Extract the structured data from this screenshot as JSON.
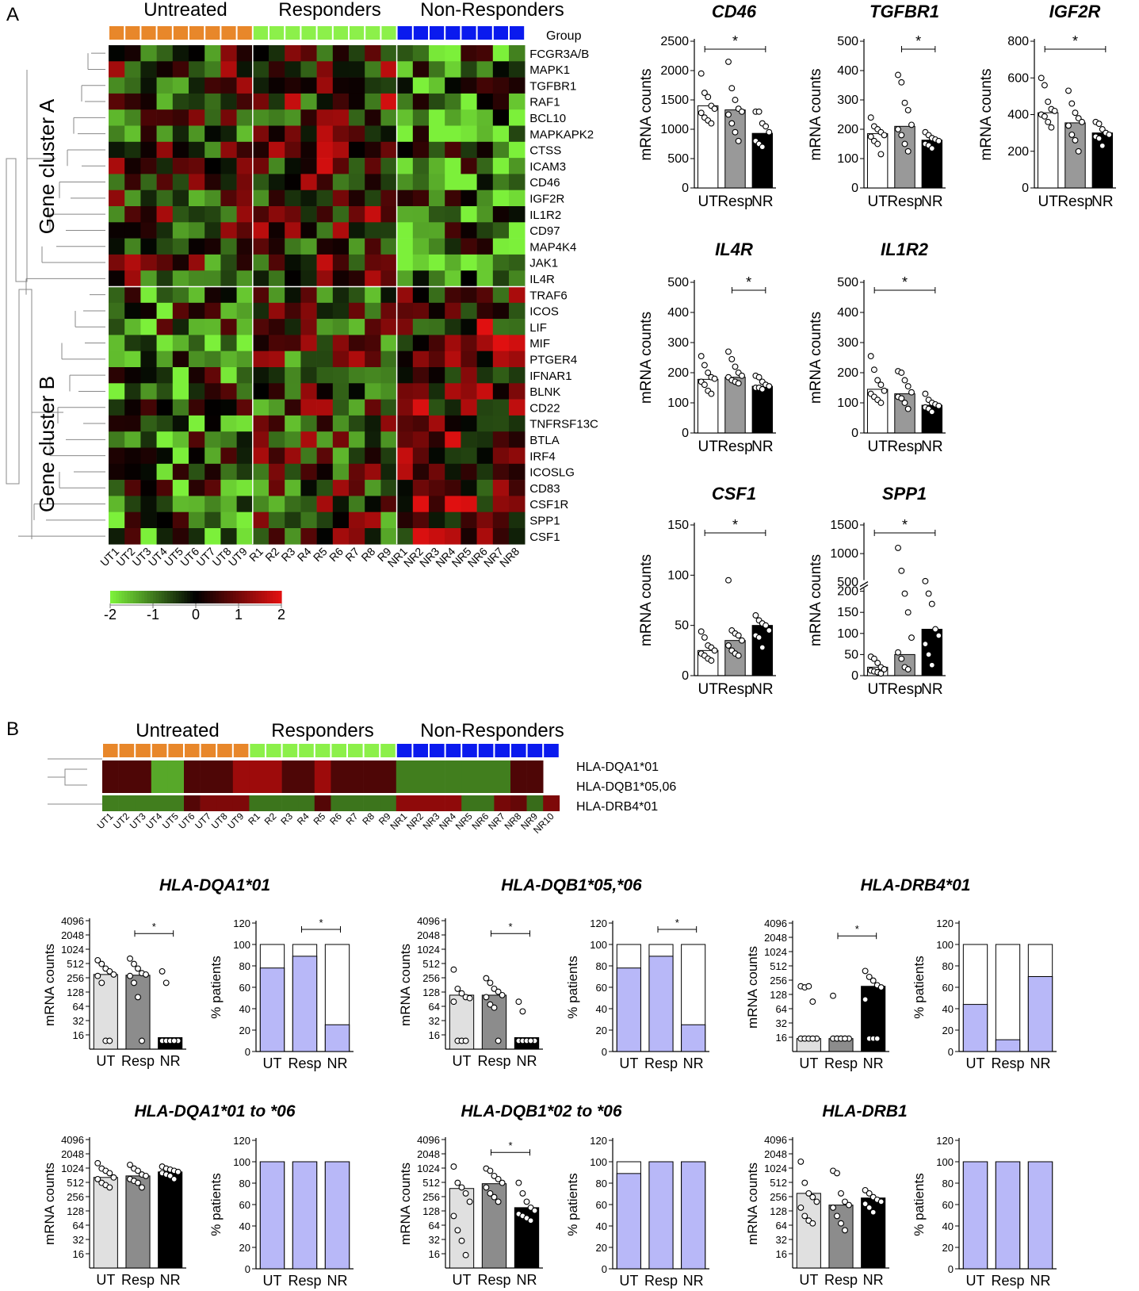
{
  "panels": {
    "a": "A",
    "b": "B"
  },
  "colors": {
    "ut_group": "#e8872a",
    "resp_group": "#8cf04a",
    "nr_group": "#0a1aee",
    "heat_low": "#7cf03a",
    "heat_mid": "#000000",
    "heat_high": "#e01010",
    "bar_ut": "#ffffff",
    "bar_resp": "#999999",
    "bar_nr": "#000000",
    "bar_ut_hla": "#e0e0e0",
    "bar_resp_hla": "#8c8c8c",
    "pct_fill": "#b8b8f8"
  },
  "heatmap": {
    "group_labels": [
      "Untreated",
      "Responders",
      "Non-Responders"
    ],
    "group_row_label": "Group",
    "cluster_labels": [
      "Gene cluster A",
      "Gene cluster B"
    ],
    "genes": [
      "FCGR3A/B",
      "MAPK1",
      "TGFBR1",
      "RAF1",
      "BCL10",
      "MAPKAPK2",
      "CTSS",
      "ICAM3",
      "CD46",
      "IGF2R",
      "IL1R2",
      "CD97",
      "MAP4K4",
      "JAK1",
      "IL4R",
      "TRAF6",
      "ICOS",
      "LIF",
      "MIF",
      "PTGER4",
      "IFNAR1",
      "BLNK",
      "CD22",
      "TNFRSF13C",
      "BTLA",
      "IRF4",
      "ICOSLG",
      "CD83",
      "CSF1R",
      "SPP1",
      "CSF1"
    ],
    "samples": [
      "UT1",
      "UT2",
      "UT3",
      "UT4",
      "UT5",
      "UT6",
      "UT7",
      "UT8",
      "UT9",
      "R1",
      "R2",
      "R3",
      "R4",
      "R5",
      "R6",
      "R7",
      "R8",
      "R9",
      "NR1",
      "NR2",
      "NR3",
      "NR4",
      "NR5",
      "NR6",
      "NR7",
      "NR8"
    ],
    "scale_ticks": [
      "-2",
      "-1",
      "0",
      "1",
      "2"
    ],
    "scale_range": [
      -2,
      2
    ]
  },
  "hla_heatmap": {
    "group_labels": [
      "Untreated",
      "Responders",
      "Non-Responders"
    ],
    "rows": [
      "HLA-DQA1*01",
      "HLA-DQB1*05,06",
      "HLA-DRB4*01"
    ],
    "samples": [
      "UT1",
      "UT2",
      "UT3",
      "UT4",
      "UT5",
      "UT6",
      "UT7",
      "UT8",
      "UT9",
      "R1",
      "R2",
      "R3",
      "R4",
      "R5",
      "R6",
      "R7",
      "R8",
      "R9",
      "NR1",
      "NR2",
      "NR3",
      "NR4",
      "NR5",
      "NR6",
      "NR7",
      "NR8",
      "NR9",
      "NR10"
    ]
  },
  "chart_data": [
    {
      "type": "bar",
      "title": "CD46",
      "ylabel": "mRNA counts",
      "categories": [
        "UT",
        "Resp",
        "NR"
      ],
      "values": [
        1400,
        1330,
        930
      ],
      "ylim": [
        0,
        2500
      ],
      "yticks": [
        "0",
        "500",
        "1000",
        "1500",
        "2000",
        "2500"
      ],
      "points": [
        [
          1950,
          1620,
          1550,
          1400,
          1350,
          1280,
          1200,
          1150,
          1100
        ],
        [
          2150,
          1700,
          1500,
          1350,
          1300,
          1250,
          1100,
          950,
          800
        ],
        [
          1300,
          1300,
          1100,
          1050,
          950,
          800,
          750,
          700
        ]
      ],
      "significance": [
        {
          "from": "UT",
          "to": "NR",
          "label": "*"
        }
      ]
    },
    {
      "type": "bar",
      "title": "TGFBR1",
      "ylabel": "mRNA counts",
      "categories": [
        "UT",
        "Resp",
        "NR"
      ],
      "values": [
        185,
        210,
        163
      ],
      "ylim": [
        0,
        500
      ],
      "yticks": [
        "0",
        "100",
        "200",
        "300",
        "400",
        "500"
      ],
      "points": [
        [
          240,
          210,
          200,
          190,
          180,
          175,
          160,
          150,
          115
        ],
        [
          385,
          360,
          290,
          265,
          215,
          200,
          180,
          150,
          125
        ],
        [
          190,
          180,
          170,
          165,
          160,
          150,
          145,
          135
        ]
      ],
      "significance": [
        {
          "from": "Resp",
          "to": "NR",
          "label": "*"
        }
      ]
    },
    {
      "type": "bar",
      "title": "IGF2R",
      "ylabel": "mRNA counts",
      "categories": [
        "UT",
        "Resp",
        "NR"
      ],
      "values": [
        410,
        355,
        300
      ],
      "ylim": [
        0,
        800
      ],
      "yticks": [
        "0",
        "200",
        "400",
        "600",
        "800"
      ],
      "points": [
        [
          600,
          560,
          470,
          430,
          420,
          400,
          390,
          360,
          330
        ],
        [
          530,
          460,
          410,
          380,
          360,
          340,
          290,
          260,
          200
        ],
        [
          360,
          350,
          320,
          300,
          290,
          280,
          270,
          230
        ]
      ],
      "significance": [
        {
          "from": "UT",
          "to": "NR",
          "label": "*"
        }
      ]
    },
    {
      "type": "bar",
      "title": "IL4R",
      "ylabel": "mRNA counts",
      "categories": [
        "UT",
        "Resp",
        "NR"
      ],
      "values": [
        178,
        185,
        155
      ],
      "ylim": [
        0,
        500
      ],
      "yticks": [
        "0",
        "100",
        "200",
        "300",
        "400",
        "500"
      ],
      "points": [
        [
          255,
          225,
          200,
          185,
          180,
          170,
          160,
          140,
          130
        ],
        [
          270,
          245,
          220,
          200,
          190,
          185,
          175,
          170,
          165
        ],
        [
          190,
          185,
          170,
          160,
          155,
          150,
          150,
          145
        ]
      ],
      "significance": [
        {
          "from": "Resp",
          "to": "NR",
          "label": "*"
        }
      ]
    },
    {
      "type": "bar",
      "title": "IL1R2",
      "ylabel": "mRNA counts",
      "categories": [
        "UT",
        "Resp",
        "NR"
      ],
      "values": [
        145,
        130,
        92
      ],
      "ylim": [
        0,
        500
      ],
      "yticks": [
        "0",
        "100",
        "200",
        "300",
        "400",
        "500"
      ],
      "points": [
        [
          255,
          210,
          175,
          160,
          140,
          130,
          120,
          110,
          100
        ],
        [
          205,
          200,
          175,
          155,
          135,
          120,
          115,
          100,
          80
        ],
        [
          130,
          110,
          100,
          95,
          90,
          85,
          80,
          70
        ]
      ],
      "significance": [
        {
          "from": "UT",
          "to": "NR",
          "label": "*"
        }
      ]
    },
    {
      "type": "bar",
      "title": "CSF1",
      "ylabel": "mRNA counts",
      "categories": [
        "UT",
        "Resp",
        "NR"
      ],
      "values": [
        25,
        35,
        50
      ],
      "ylim": [
        0,
        150
      ],
      "yticks": [
        "0",
        "50",
        "100",
        "150"
      ],
      "points": [
        [
          44,
          38,
          30,
          28,
          25,
          22,
          20,
          17,
          15
        ],
        [
          95,
          45,
          42,
          40,
          35,
          30,
          25,
          22,
          20
        ],
        [
          60,
          55,
          52,
          50,
          45,
          40,
          38,
          28
        ]
      ],
      "significance": [
        {
          "from": "UT",
          "to": "NR",
          "label": "*"
        }
      ]
    },
    {
      "type": "bar",
      "title": "SPP1",
      "ylabel": "mRNA counts",
      "categories": [
        "UT",
        "Resp",
        "NR"
      ],
      "values": [
        20,
        50,
        110
      ],
      "ylim": [
        0,
        1500
      ],
      "yticks": [
        "0",
        "50",
        "100",
        "150",
        "200",
        "500",
        "1000",
        "1500"
      ],
      "axis_break": [
        200,
        500
      ],
      "points": [
        [
          45,
          40,
          30,
          20,
          15,
          12,
          10,
          8,
          5
        ],
        [
          1100,
          700,
          300,
          150,
          90,
          55,
          40,
          20,
          15
        ],
        [
          520,
          300,
          170,
          110,
          95,
          75,
          50,
          25
        ]
      ],
      "significance": [
        {
          "from": "UT",
          "to": "NR",
          "label": "*"
        }
      ]
    },
    {
      "type": "bar",
      "title": "HLA-DQA1*01",
      "ylabel": "mRNA counts",
      "categories": [
        "UT",
        "Resp",
        "NR"
      ],
      "values": [
        300,
        290,
        14
      ],
      "yscale": "log2",
      "yticks": [
        "16",
        "32",
        "64",
        "128",
        "256",
        "512",
        "1024",
        "2048",
        "4096"
      ],
      "points": [
        [
          600,
          500,
          400,
          350,
          300,
          280,
          200,
          12,
          12
        ],
        [
          650,
          500,
          400,
          320,
          300,
          280,
          200,
          100,
          12
        ],
        [
          350,
          200,
          12,
          12,
          12,
          12,
          12,
          12,
          12
        ]
      ],
      "significance": [
        {
          "from": "Resp",
          "to": "NR",
          "label": "*"
        }
      ]
    },
    {
      "type": "bar",
      "title": "HLA-DQA1*01",
      "ylabel": "% patients",
      "categories": [
        "UT",
        "Resp",
        "NR"
      ],
      "values": [
        78,
        89,
        25
      ],
      "ylim": [
        0,
        120
      ],
      "yticks": [
        "0",
        "20",
        "40",
        "60",
        "80",
        "100",
        "120"
      ],
      "significance": [
        {
          "from": "Resp",
          "to": "NR",
          "label": "*"
        }
      ]
    },
    {
      "type": "bar",
      "title": "HLA-DQB1*05,*06",
      "ylabel": "mRNA counts",
      "categories": [
        "UT",
        "Resp",
        "NR"
      ],
      "values": [
        110,
        110,
        14
      ],
      "yscale": "log2",
      "yticks": [
        "16",
        "32",
        "64",
        "128",
        "256",
        "512",
        "1024",
        "2048",
        "4096"
      ],
      "points": [
        [
          380,
          150,
          120,
          100,
          95,
          80,
          12,
          12,
          12
        ],
        [
          250,
          200,
          150,
          130,
          110,
          100,
          70,
          60,
          12
        ],
        [
          80,
          50,
          12,
          12,
          12,
          12,
          12,
          12,
          12
        ]
      ],
      "significance": [
        {
          "from": "Resp",
          "to": "NR",
          "label": "*"
        }
      ]
    },
    {
      "type": "bar",
      "title": "HLA-DQB1*05,*06",
      "ylabel": "% patients",
      "categories": [
        "UT",
        "Resp",
        "NR"
      ],
      "values": [
        78,
        89,
        25
      ],
      "ylim": [
        0,
        120
      ],
      "yticks": [
        "0",
        "20",
        "40",
        "60",
        "80",
        "100",
        "120"
      ],
      "significance": [
        {
          "from": "Resp",
          "to": "NR",
          "label": "*"
        }
      ]
    },
    {
      "type": "bar",
      "title": "HLA-DRB4*01",
      "ylabel": "mRNA counts",
      "categories": [
        "UT",
        "Resp",
        "NR"
      ],
      "values": [
        15,
        15,
        190
      ],
      "yscale": "log2",
      "yticks": [
        "16",
        "32",
        "64",
        "128",
        "256",
        "512",
        "1024",
        "2048",
        "4096"
      ],
      "points": [
        [
          190,
          180,
          190,
          90,
          15,
          15,
          15,
          15,
          15
        ],
        [
          120,
          15,
          15,
          15,
          15,
          15,
          15,
          15,
          15
        ],
        [
          400,
          300,
          250,
          200,
          180,
          100,
          15,
          15,
          15
        ]
      ],
      "significance": [
        {
          "from": "Resp",
          "to": "NR",
          "label": "*"
        }
      ]
    },
    {
      "type": "bar",
      "title": "HLA-DRB4*01",
      "ylabel": "% patients",
      "categories": [
        "UT",
        "Resp",
        "NR"
      ],
      "values": [
        44,
        11,
        70
      ],
      "ylim": [
        0,
        120
      ],
      "yticks": [
        "0",
        "20",
        "40",
        "60",
        "80",
        "100",
        "120"
      ]
    },
    {
      "type": "bar",
      "title": "HLA-DQA1*01 to *06",
      "ylabel": "mRNA counts",
      "categories": [
        "UT",
        "Resp",
        "NR"
      ],
      "values": [
        650,
        700,
        850
      ],
      "yscale": "log2",
      "yticks": [
        "16",
        "32",
        "64",
        "128",
        "256",
        "512",
        "1024",
        "2048",
        "4096"
      ],
      "points": [
        [
          1300,
          1000,
          900,
          800,
          650,
          600,
          500,
          450,
          400
        ],
        [
          1200,
          1000,
          900,
          750,
          700,
          600,
          550,
          500,
          400
        ],
        [
          1100,
          1000,
          950,
          900,
          850,
          800,
          750,
          700,
          600
        ]
      ]
    },
    {
      "type": "bar",
      "title": "HLA-DQA1*01 to *06",
      "ylabel": "% patients",
      "categories": [
        "UT",
        "Resp",
        "NR"
      ],
      "values": [
        100,
        100,
        100
      ],
      "ylim": [
        0,
        120
      ],
      "yticks": [
        "0",
        "20",
        "40",
        "60",
        "80",
        "100",
        "120"
      ]
    },
    {
      "type": "bar",
      "title": "HLA-DQB1*02 to *06",
      "ylabel": "mRNA counts",
      "categories": [
        "UT",
        "Resp",
        "NR"
      ],
      "values": [
        380,
        480,
        150
      ],
      "yscale": "log2",
      "yticks": [
        "16",
        "32",
        "64",
        "128",
        "256",
        "512",
        "1024",
        "2048",
        "4096"
      ],
      "points": [
        [
          1100,
          500,
          400,
          300,
          200,
          100,
          50,
          30,
          15
        ],
        [
          1000,
          900,
          700,
          600,
          500,
          400,
          300,
          250,
          200
        ],
        [
          500,
          300,
          200,
          150,
          130,
          110,
          100,
          90,
          80
        ]
      ],
      "significance": [
        {
          "from": "Resp",
          "to": "NR",
          "label": "*"
        }
      ]
    },
    {
      "type": "bar",
      "title": "HLA-DQB1*02 to *06",
      "ylabel": "% patients",
      "categories": [
        "UT",
        "Resp",
        "NR"
      ],
      "values": [
        89,
        100,
        100
      ],
      "ylim": [
        0,
        120
      ],
      "yticks": [
        "0",
        "20",
        "40",
        "60",
        "80",
        "100",
        "120"
      ]
    },
    {
      "type": "bar",
      "title": "HLA-DRB1",
      "ylabel": "mRNA counts",
      "categories": [
        "UT",
        "Resp",
        "NR"
      ],
      "values": [
        300,
        170,
        240
      ],
      "yscale": "log2",
      "yticks": [
        "16",
        "32",
        "64",
        "128",
        "256",
        "512",
        "1024",
        "2048",
        "4096"
      ],
      "points": [
        [
          1400,
          500,
          300,
          250,
          200,
          150,
          100,
          80,
          70
        ],
        [
          900,
          800,
          300,
          200,
          170,
          150,
          100,
          70,
          50
        ],
        [
          350,
          300,
          250,
          220,
          200,
          180,
          150,
          120
        ]
      ]
    },
    {
      "type": "bar",
      "title": "HLA-DRB1",
      "ylabel": "% patients",
      "categories": [
        "UT",
        "Resp",
        "NR"
      ],
      "values": [
        100,
        100,
        100
      ],
      "ylim": [
        0,
        120
      ],
      "yticks": [
        "0",
        "20",
        "40",
        "60",
        "80",
        "100",
        "120"
      ]
    }
  ]
}
